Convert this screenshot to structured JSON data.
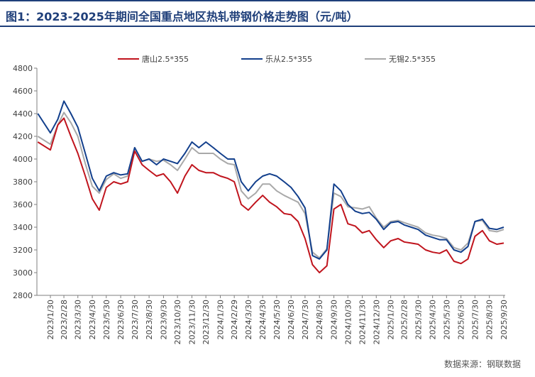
{
  "figure": {
    "title": "图1：2023-2025年期间全国重点地区热轧带钢价格走势图（元/吨）",
    "source": "数据来源：钢联数据"
  },
  "colors": {
    "tangshan": "#c0141d",
    "lecong": "#123f8c",
    "wuxi": "#a9a9a9",
    "axis": "#7f7f7f",
    "text": "#404040"
  },
  "chart_data": {
    "type": "line",
    "title": "",
    "xlabel": "",
    "ylabel": "",
    "ylim": [
      2800,
      4800
    ],
    "yticks": [
      2800,
      3000,
      3200,
      3400,
      3600,
      3800,
      4000,
      4200,
      4400,
      4600,
      4800
    ],
    "grid": false,
    "legend": "top",
    "x_ticks": [
      "2023/1/30",
      "2023/2/28",
      "2023/3/30",
      "2023/4/30",
      "2023/5/30",
      "2023/6/30",
      "2023/7/30",
      "2023/8/30",
      "2023/9/30",
      "2023/10/30",
      "2023/11/30",
      "2023/12/30",
      "2024/1/30",
      "2024/2/29",
      "2024/3/30",
      "2024/4/30",
      "2024/5/30",
      "2024/6/30",
      "2024/7/30",
      "2024/8/30",
      "2024/9/30",
      "2024/10/30",
      "2024/11/30",
      "2024/12/30",
      "2025/1/30",
      "2025/2/28",
      "2025/3/30",
      "2025/4/30",
      "2025/5/30",
      "2025/6/30",
      "2025/7/30",
      "2025/8/30",
      "2025/9/30"
    ],
    "x": [
      "2023/1/3",
      "2023/1/30",
      "2023/2/15",
      "2023/2/28",
      "2023/3/15",
      "2023/3/30",
      "2023/4/15",
      "2023/4/30",
      "2023/5/15",
      "2023/5/30",
      "2023/6/15",
      "2023/6/30",
      "2023/7/15",
      "2023/7/30",
      "2023/8/15",
      "2023/8/30",
      "2023/9/15",
      "2023/9/30",
      "2023/10/15",
      "2023/10/30",
      "2023/11/15",
      "2023/11/30",
      "2023/12/15",
      "2023/12/30",
      "2024/1/15",
      "2024/1/30",
      "2024/2/15",
      "2024/2/29",
      "2024/3/15",
      "2024/3/30",
      "2024/4/15",
      "2024/4/30",
      "2024/5/15",
      "2024/5/30",
      "2024/6/15",
      "2024/6/30",
      "2024/7/15",
      "2024/7/30",
      "2024/8/15",
      "2024/8/30",
      "2024/9/15",
      "2024/9/30",
      "2024/10/15",
      "2024/10/30",
      "2024/11/15",
      "2024/11/30",
      "2024/12/15",
      "2024/12/30",
      "2025/1/15",
      "2025/1/30",
      "2025/2/15",
      "2025/2/28",
      "2025/3/15",
      "2025/3/30",
      "2025/4/15",
      "2025/4/30",
      "2025/5/15",
      "2025/5/30",
      "2025/6/15",
      "2025/6/30",
      "2025/7/15",
      "2025/7/30",
      "2025/8/15",
      "2025/8/30",
      "2025/9/15",
      "2025/9/30"
    ],
    "series": [
      {
        "name": "唐山2.5*355",
        "values": [
          4150,
          4080,
          4300,
          4360,
          4200,
          4050,
          3850,
          3650,
          3550,
          3750,
          3800,
          3780,
          3800,
          4070,
          3950,
          3900,
          3850,
          3870,
          3800,
          3700,
          3850,
          3950,
          3900,
          3880,
          3880,
          3850,
          3830,
          3800,
          3600,
          3550,
          3620,
          3680,
          3620,
          3580,
          3520,
          3510,
          3450,
          3300,
          3070,
          3000,
          3060,
          3560,
          3600,
          3430,
          3410,
          3350,
          3370,
          3290,
          3220,
          3280,
          3300,
          3270,
          3260,
          3250,
          3200,
          3180,
          3170,
          3200,
          3100,
          3080,
          3120,
          3320,
          3370,
          3280,
          3250,
          3260
        ]
      },
      {
        "name": "乐从2.5*355",
        "values": [
          4400,
          4230,
          4350,
          4510,
          4400,
          4280,
          4050,
          3830,
          3720,
          3850,
          3880,
          3860,
          3870,
          4100,
          3980,
          4000,
          3950,
          4000,
          3980,
          3960,
          4050,
          4150,
          4100,
          4150,
          4100,
          4050,
          4000,
          4000,
          3800,
          3720,
          3800,
          3850,
          3870,
          3850,
          3800,
          3750,
          3670,
          3570,
          3150,
          3120,
          3200,
          3780,
          3720,
          3600,
          3540,
          3520,
          3530,
          3470,
          3380,
          3440,
          3450,
          3420,
          3400,
          3380,
          3330,
          3310,
          3290,
          3290,
          3200,
          3180,
          3230,
          3450,
          3470,
          3390,
          3380,
          3400
        ]
      },
      {
        "name": "无锡2.5*355",
        "values": [
          4200,
          4130,
          4300,
          4410,
          4320,
          4200,
          3960,
          3760,
          3700,
          3820,
          3870,
          3830,
          3850,
          4100,
          3980,
          4000,
          3980,
          3990,
          3950,
          3900,
          4000,
          4100,
          4050,
          4050,
          4050,
          4000,
          3960,
          3950,
          3720,
          3650,
          3700,
          3780,
          3780,
          3720,
          3680,
          3650,
          3620,
          3520,
          3180,
          3130,
          3210,
          3700,
          3670,
          3580,
          3570,
          3560,
          3580,
          3480,
          3400,
          3450,
          3460,
          3440,
          3420,
          3400,
          3350,
          3330,
          3320,
          3300,
          3220,
          3200,
          3260,
          3450,
          3460,
          3370,
          3360,
          3380
        ]
      }
    ]
  }
}
